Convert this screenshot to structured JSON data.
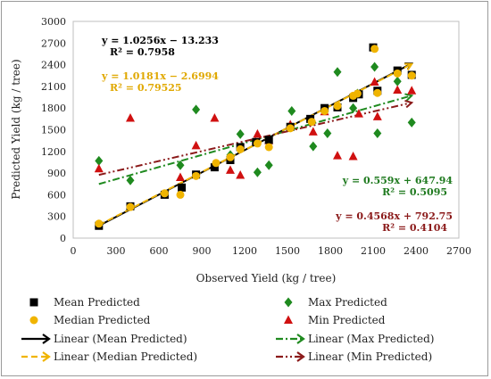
{
  "chart_data": {
    "type": "scatter",
    "xlabel": "Observed Yield (kg / tree)",
    "ylabel": "Predicted Yield (kg / tree)",
    "xlim": [
      0,
      2700
    ],
    "ylim": [
      0,
      3000
    ],
    "xticks": [
      0,
      300,
      600,
      900,
      1200,
      1500,
      1800,
      2100,
      2400,
      2700
    ],
    "yticks": [
      0,
      300,
      600,
      900,
      1200,
      1500,
      1800,
      2100,
      2400,
      2700,
      3000
    ],
    "grid": false,
    "legend_position": "bottom",
    "series": [
      {
        "name": "Mean Predicted",
        "marker": "square",
        "color": "#000000",
        "points": [
          [
            180,
            170
          ],
          [
            400,
            440
          ],
          [
            640,
            600
          ],
          [
            760,
            700
          ],
          [
            860,
            880
          ],
          [
            990,
            980
          ],
          [
            1100,
            1080
          ],
          [
            1170,
            1260
          ],
          [
            1280,
            1330
          ],
          [
            1370,
            1360
          ],
          [
            1520,
            1540
          ],
          [
            1660,
            1650
          ],
          [
            1760,
            1800
          ],
          [
            1850,
            1810
          ],
          [
            1960,
            1940
          ],
          [
            2000,
            1990
          ],
          [
            2100,
            2640
          ],
          [
            2130,
            2040
          ],
          [
            2270,
            2320
          ],
          [
            2370,
            2260
          ]
        ]
      },
      {
        "name": "Median Predicted",
        "marker": "circle",
        "color": "#f0b400",
        "points": [
          [
            180,
            200
          ],
          [
            400,
            430
          ],
          [
            640,
            620
          ],
          [
            750,
            600
          ],
          [
            860,
            860
          ],
          [
            1000,
            1040
          ],
          [
            1100,
            1120
          ],
          [
            1170,
            1230
          ],
          [
            1290,
            1310
          ],
          [
            1370,
            1260
          ],
          [
            1520,
            1520
          ],
          [
            1670,
            1610
          ],
          [
            1760,
            1760
          ],
          [
            1850,
            1830
          ],
          [
            1960,
            1970
          ],
          [
            1990,
            2000
          ],
          [
            2110,
            2620
          ],
          [
            2130,
            2010
          ],
          [
            2270,
            2280
          ],
          [
            2370,
            2250
          ]
        ]
      },
      {
        "name": "Max Predicted",
        "marker": "diamond",
        "color": "#1f8a1f",
        "points": [
          [
            180,
            1070
          ],
          [
            400,
            800
          ],
          [
            750,
            1010
          ],
          [
            860,
            1780
          ],
          [
            1100,
            1150
          ],
          [
            1170,
            1440
          ],
          [
            1290,
            910
          ],
          [
            1370,
            1010
          ],
          [
            1530,
            1760
          ],
          [
            1680,
            1270
          ],
          [
            1780,
            1450
          ],
          [
            1850,
            2300
          ],
          [
            1960,
            1800
          ],
          [
            1990,
            2000
          ],
          [
            2110,
            2370
          ],
          [
            2130,
            1450
          ],
          [
            2270,
            2170
          ],
          [
            2370,
            1600
          ]
        ]
      },
      {
        "name": "Min Predicted",
        "marker": "triangle",
        "color": "#d01010",
        "points": [
          [
            180,
            960
          ],
          [
            400,
            1660
          ],
          [
            640,
            600
          ],
          [
            750,
            840
          ],
          [
            860,
            1280
          ],
          [
            990,
            1660
          ],
          [
            1100,
            940
          ],
          [
            1170,
            870
          ],
          [
            1290,
            1440
          ],
          [
            1370,
            1350
          ],
          [
            1520,
            1570
          ],
          [
            1680,
            1470
          ],
          [
            1760,
            1750
          ],
          [
            1850,
            1140
          ],
          [
            1960,
            1130
          ],
          [
            2000,
            1720
          ],
          [
            2110,
            2160
          ],
          [
            2130,
            1680
          ],
          [
            2270,
            2050
          ],
          [
            2370,
            2040
          ]
        ]
      }
    ],
    "trendlines": [
      {
        "name": "Linear (Mean Predicted)",
        "slope": 1.0256,
        "intercept": -13.233,
        "x_range": [
          180,
          2370
        ],
        "color": "#000000",
        "dash": "solid",
        "equation": "y = 1.0256x − 13.233",
        "r2": "R² = 0.7958"
      },
      {
        "name": "Linear (Median Predicted)",
        "slope": 1.0181,
        "intercept": -2.6994,
        "x_range": [
          180,
          2370
        ],
        "color": "#f0b400",
        "dash": "dash",
        "equation": "y = 1.0181x − 2.6994",
        "r2": "R² = 0.79525"
      },
      {
        "name": "Linear (Max Predicted)",
        "slope": 0.559,
        "intercept": 647.94,
        "x_range": [
          180,
          2370
        ],
        "color": "#1f8a1f",
        "dash": "dashdot",
        "equation": "y = 0.559x + 647.94",
        "r2": "R² = 0.5095"
      },
      {
        "name": "Linear (Min Predicted)",
        "slope": 0.4568,
        "intercept": 792.75,
        "x_range": [
          180,
          2370
        ],
        "color": "#8b1a1a",
        "dash": "dashdotdot",
        "equation": "y = 0.4568x + 792.75",
        "r2": "R² = 0.4104"
      }
    ]
  }
}
